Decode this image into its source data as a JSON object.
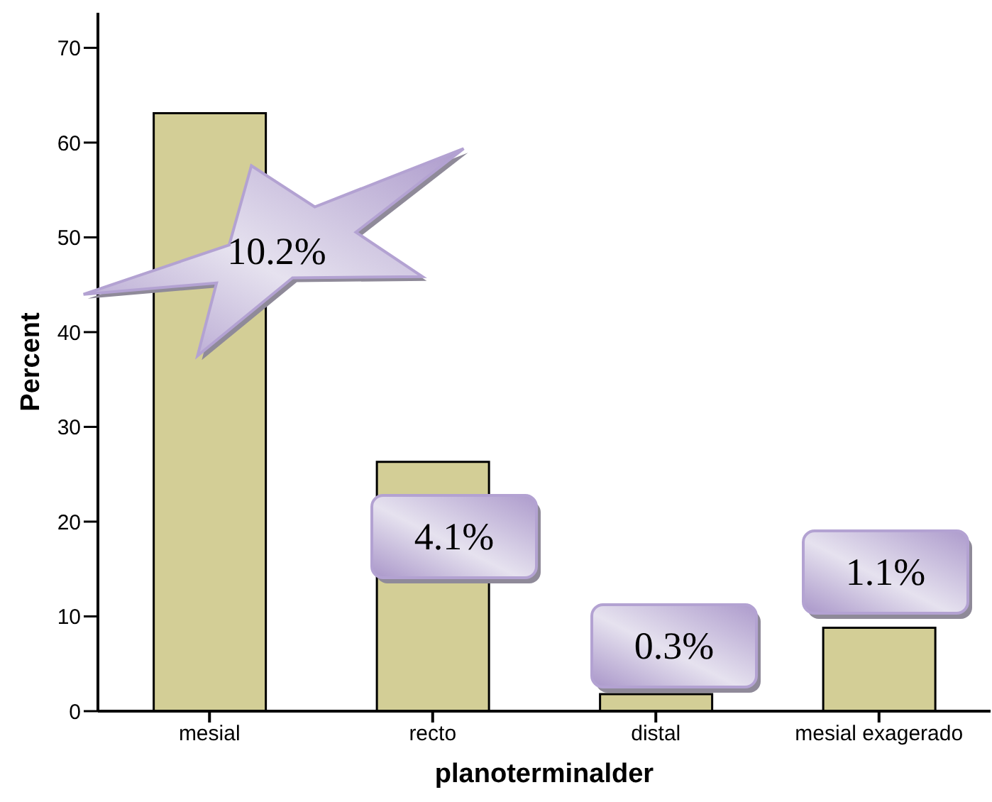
{
  "chart_data": {
    "type": "bar",
    "xlabel": "planoterminalder",
    "ylabel": "Percent",
    "categories": [
      "mesial",
      "recto",
      "distal",
      "mesial exagerado"
    ],
    "values": [
      63.1,
      26.3,
      1.8,
      8.8
    ],
    "color": "#d3ce96",
    "ylim": [
      0,
      73.7
    ],
    "yticks": [
      0,
      10,
      20,
      30,
      40,
      50,
      60,
      70
    ],
    "annotations": [
      "10.2%",
      "4.1%",
      "0.3%",
      "1.1%"
    ]
  }
}
